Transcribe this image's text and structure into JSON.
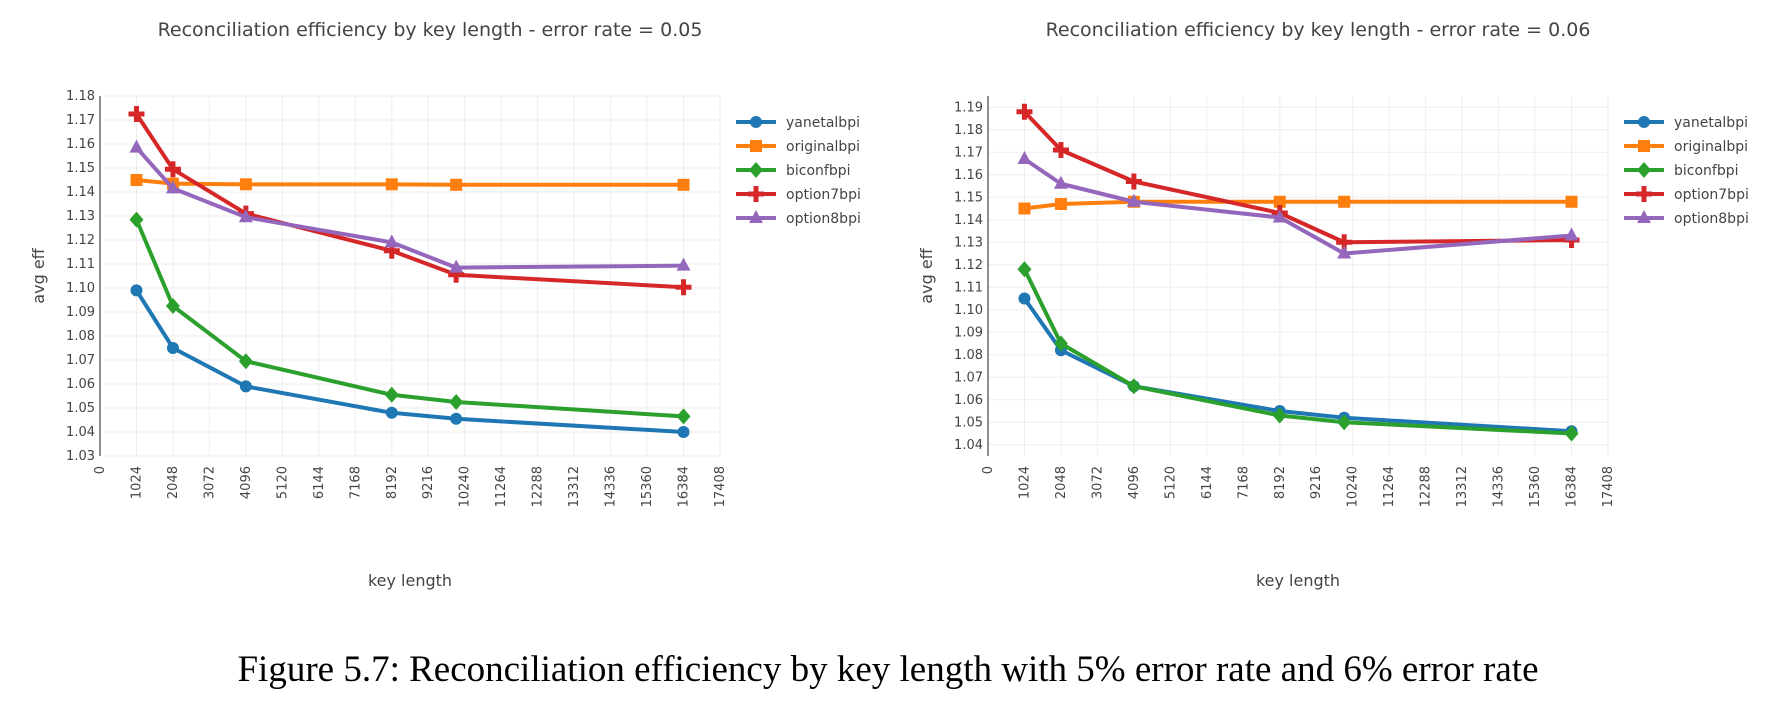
{
  "caption": "Figure 5.7: Reconciliation efficiency by key length with 5% error rate and 6% error rate",
  "chart_data": [
    {
      "type": "line",
      "title": "Reconciliation efficiency by key length - error rate = 0.05",
      "xlabel": "key length",
      "ylabel": "avg eff",
      "xlim": [
        0,
        17408
      ],
      "ylim": [
        1.03,
        1.18
      ],
      "x_ticks": [
        0,
        1024,
        2048,
        3072,
        4096,
        5120,
        6144,
        7168,
        8192,
        9216,
        10240,
        11264,
        12288,
        13312,
        14336,
        15360,
        16384,
        17408
      ],
      "y_ticks": [
        "1.03",
        "1.04",
        "1.05",
        "1.06",
        "1.07",
        "1.08",
        "1.09",
        "1.10",
        "1.11",
        "1.12",
        "1.13",
        "1.14",
        "1.15",
        "1.16",
        "1.17",
        "1.18"
      ],
      "x": [
        1024,
        2048,
        4096,
        8192,
        10000,
        16384
      ],
      "series": [
        {
          "name": "yanetalbpi",
          "color": "#1f77b4",
          "marker": "circle",
          "values": [
            1.099,
            1.075,
            1.059,
            1.048,
            1.0455,
            1.04
          ]
        },
        {
          "name": "originalbpi",
          "color": "#ff7f0e",
          "marker": "square",
          "values": [
            1.145,
            1.1435,
            1.1432,
            1.1432,
            1.143,
            1.143
          ]
        },
        {
          "name": "biconfbpi",
          "color": "#2ca02c",
          "marker": "diamond",
          "values": [
            1.1285,
            1.0925,
            1.0695,
            1.0555,
            1.0525,
            1.0465
          ]
        },
        {
          "name": "option7bpi",
          "color": "#d62728",
          "marker": "cross",
          "values": [
            1.1725,
            1.1495,
            1.131,
            1.1155,
            1.1055,
            1.1003
          ]
        },
        {
          "name": "option8bpi",
          "color": "#9467bd",
          "marker": "triangle",
          "values": [
            1.1585,
            1.1415,
            1.1295,
            1.119,
            1.1085,
            1.1093
          ]
        }
      ],
      "legend_position": "top-right"
    },
    {
      "type": "line",
      "title": "Reconciliation efficiency by key length - error rate = 0.06",
      "xlabel": "key length",
      "ylabel": "avg eff",
      "xlim": [
        0,
        17408
      ],
      "ylim": [
        1.035,
        1.195
      ],
      "x_ticks": [
        0,
        1024,
        2048,
        3072,
        4096,
        5120,
        6144,
        7168,
        8192,
        9216,
        10240,
        11264,
        12288,
        13312,
        14336,
        15360,
        16384,
        17408
      ],
      "y_ticks": [
        "1.04",
        "1.05",
        "1.06",
        "1.07",
        "1.08",
        "1.09",
        "1.10",
        "1.11",
        "1.12",
        "1.13",
        "1.14",
        "1.15",
        "1.16",
        "1.17",
        "1.18",
        "1.19"
      ],
      "x": [
        1024,
        2048,
        4096,
        8192,
        10000,
        16384
      ],
      "series": [
        {
          "name": "yanetalbpi",
          "color": "#1f77b4",
          "marker": "circle",
          "values": [
            1.105,
            1.082,
            1.066,
            1.055,
            1.052,
            1.046
          ]
        },
        {
          "name": "originalbpi",
          "color": "#ff7f0e",
          "marker": "square",
          "values": [
            1.145,
            1.147,
            1.148,
            1.148,
            1.148,
            1.148
          ]
        },
        {
          "name": "biconfbpi",
          "color": "#2ca02c",
          "marker": "diamond",
          "values": [
            1.118,
            1.085,
            1.066,
            1.053,
            1.05,
            1.045
          ]
        },
        {
          "name": "option7bpi",
          "color": "#d62728",
          "marker": "cross",
          "values": [
            1.188,
            1.171,
            1.157,
            1.143,
            1.13,
            1.131
          ]
        },
        {
          "name": "option8bpi",
          "color": "#9467bd",
          "marker": "triangle",
          "values": [
            1.167,
            1.156,
            1.148,
            1.141,
            1.125,
            1.133
          ]
        }
      ],
      "legend_position": "top-right"
    }
  ]
}
